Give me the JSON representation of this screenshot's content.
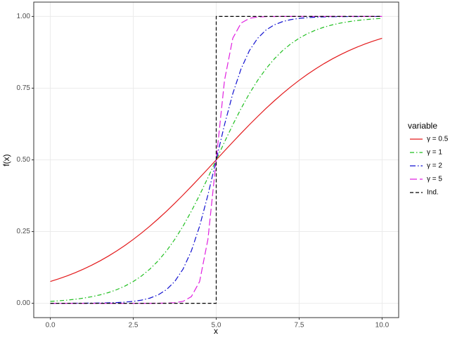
{
  "chart_data": {
    "type": "line",
    "x_label": "x",
    "y_label": "f(x)",
    "x": [
      0,
      0.25,
      0.5,
      0.75,
      1,
      1.25,
      1.5,
      1.75,
      2,
      2.25,
      2.5,
      2.75,
      3,
      3.25,
      3.5,
      3.75,
      4,
      4.25,
      4.5,
      4.75,
      5,
      5.25,
      5.5,
      5.75,
      6,
      6.25,
      6.5,
      6.75,
      7,
      7.25,
      7.5,
      7.75,
      8,
      8.25,
      8.5,
      8.75,
      9,
      9.25,
      9.5,
      9.75,
      10
    ],
    "series": [
      {
        "name": "γ = 0.5",
        "color": "#e31a1c",
        "dash": "none",
        "values": [
          0.0759,
          0.0851,
          0.0953,
          0.1067,
          0.1192,
          0.133,
          0.148,
          0.1645,
          0.1824,
          0.2018,
          0.2227,
          0.2451,
          0.2689,
          0.2942,
          0.3208,
          0.3487,
          0.3775,
          0.4073,
          0.4378,
          0.4688,
          0.5,
          0.5312,
          0.5622,
          0.5927,
          0.6225,
          0.6513,
          0.6792,
          0.7058,
          0.7311,
          0.7549,
          0.7773,
          0.7982,
          0.8176,
          0.8355,
          0.852,
          0.867,
          0.8808,
          0.8933,
          0.9047,
          0.9149,
          0.9241
        ]
      },
      {
        "name": "γ = 1",
        "color": "#1fbf1f",
        "dash": "6 3 1.5 3",
        "values": [
          0.0067,
          0.0086,
          0.011,
          0.0141,
          0.018,
          0.023,
          0.0293,
          0.0373,
          0.0474,
          0.0601,
          0.0759,
          0.0953,
          0.1192,
          0.148,
          0.1824,
          0.2227,
          0.2689,
          0.3208,
          0.3775,
          0.4378,
          0.5,
          0.5622,
          0.6225,
          0.6792,
          0.7311,
          0.7773,
          0.8176,
          0.852,
          0.8808,
          0.9047,
          0.9241,
          0.9399,
          0.9526,
          0.9627,
          0.9707,
          0.977,
          0.982,
          0.9859,
          0.989,
          0.9914,
          0.9933
        ]
      },
      {
        "name": "γ = 2",
        "color": "#1010d0",
        "dash": "8 3 1.5 3",
        "values": [
          0,
          0.0001,
          0.0001,
          0.0002,
          0.0003,
          0.0006,
          0.0009,
          0.0015,
          0.0025,
          0.0041,
          0.0067,
          0.011,
          0.018,
          0.0293,
          0.0474,
          0.0759,
          0.1192,
          0.1824,
          0.2689,
          0.3775,
          0.5,
          0.6225,
          0.7311,
          0.8176,
          0.8808,
          0.9241,
          0.9526,
          0.9707,
          0.982,
          0.989,
          0.9933,
          0.9959,
          0.9975,
          0.9985,
          0.9991,
          0.9994,
          0.9997,
          0.9998,
          0.9999,
          0.9999,
          1
        ]
      },
      {
        "name": "γ = 5",
        "color": "#e020e0",
        "dash": "10 4",
        "values": [
          0,
          0,
          0,
          0,
          0,
          0,
          0,
          0,
          0,
          0,
          0,
          0,
          0,
          0.0002,
          0.0006,
          0.0019,
          0.0067,
          0.023,
          0.0759,
          0.2227,
          0.5,
          0.7773,
          0.9241,
          0.977,
          0.9933,
          0.9981,
          0.9994,
          0.9998,
          1,
          1,
          1,
          1,
          1,
          1,
          1,
          1,
          1,
          1,
          1,
          1,
          1
        ]
      },
      {
        "name": "Ind.",
        "color": "#000000",
        "dash": "5 3",
        "x": [
          0,
          5,
          5,
          10
        ],
        "values": [
          0,
          0,
          1,
          1
        ]
      }
    ],
    "xlim": [
      -0.5,
      10.5
    ],
    "xticks": [
      {
        "value": 0,
        "label": "0.0"
      },
      {
        "value": 2.5,
        "label": "2.5"
      },
      {
        "value": 5,
        "label": "5.0"
      },
      {
        "value": 7.5,
        "label": "7.5"
      },
      {
        "value": 10,
        "label": "10.0"
      }
    ],
    "ylim": [
      -0.05,
      1.05
    ],
    "yticks": [
      {
        "value": 0,
        "label": "0.00"
      },
      {
        "value": 0.25,
        "label": "0.25"
      },
      {
        "value": 0.5,
        "label": "0.50"
      },
      {
        "value": 0.75,
        "label": "0.75"
      },
      {
        "value": 1,
        "label": "1.00"
      }
    ],
    "grid": true,
    "legend_title": "variable",
    "legend_position": "right"
  }
}
